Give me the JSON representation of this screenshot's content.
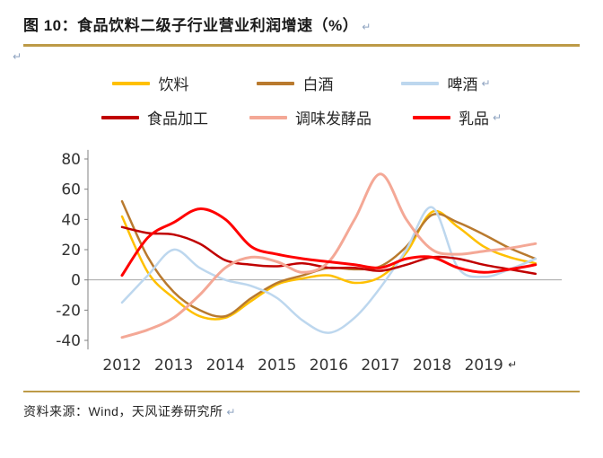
{
  "header": {
    "title": "图 10：食品饮料二级子行业营业利润增速（%）"
  },
  "marks": {
    "ret": "↵"
  },
  "footer": {
    "source": "资料来源：Wind，天风证券研究所"
  },
  "theme": {
    "rule_gold": "#bd9a47",
    "axis_line": "#808080",
    "zero_line": "#a6a6a6",
    "tick_text": "#333333"
  },
  "chart_data": {
    "type": "line",
    "title": "食品饮料二级子行业营业利润增速（%）",
    "xlabel": "",
    "ylabel": "",
    "ylim": [
      -45,
      85
    ],
    "yticks": [
      80,
      60,
      40,
      20,
      0,
      -20,
      -40
    ],
    "xticks": [
      2012,
      2013,
      2014,
      2015,
      2016,
      2017,
      2018,
      2019
    ],
    "grid": "zero-line-only",
    "legend_position": "top",
    "x": [
      2012,
      2012.5,
      2013,
      2013.5,
      2014,
      2014.5,
      2015,
      2015.5,
      2016,
      2016.5,
      2017,
      2017.5,
      2018,
      2018.5,
      2019,
      2019.5,
      2020
    ],
    "series": [
      {
        "name": "饮料",
        "color": "#ffc000",
        "ret": false,
        "values": [
          42,
          5,
          -12,
          -24,
          -25,
          -14,
          -3,
          1,
          3,
          -2,
          2,
          18,
          45,
          35,
          22,
          15,
          11
        ]
      },
      {
        "name": "白酒",
        "color": "#b97a2e",
        "ret": false,
        "values": [
          52,
          15,
          -8,
          -20,
          -24,
          -12,
          -2,
          3,
          8,
          7,
          9,
          22,
          43,
          38,
          30,
          21,
          14
        ]
      },
      {
        "name": "啤酒",
        "color": "#bdd7ee",
        "ret": true,
        "values": [
          -15,
          3,
          20,
          8,
          0,
          -4,
          -12,
          -27,
          -35,
          -25,
          -5,
          20,
          48,
          8,
          2,
          7,
          14
        ]
      },
      {
        "name": "食品加工",
        "color": "#c00000",
        "ret": false,
        "values": [
          35,
          31,
          30,
          24,
          13,
          10,
          9,
          11,
          8,
          8,
          6,
          10,
          15,
          14,
          10,
          7,
          4
        ]
      },
      {
        "name": "调味发酵品",
        "color": "#f4a896",
        "ret": false,
        "values": [
          -38,
          -33,
          -25,
          -10,
          8,
          15,
          12,
          5,
          12,
          40,
          70,
          40,
          20,
          17,
          19,
          21,
          24
        ]
      },
      {
        "name": "乳品",
        "color": "#ff0000",
        "ret": true,
        "values": [
          3,
          28,
          38,
          47,
          40,
          22,
          17,
          14,
          12,
          10,
          8,
          14,
          15,
          8,
          5,
          7,
          10
        ]
      }
    ]
  }
}
